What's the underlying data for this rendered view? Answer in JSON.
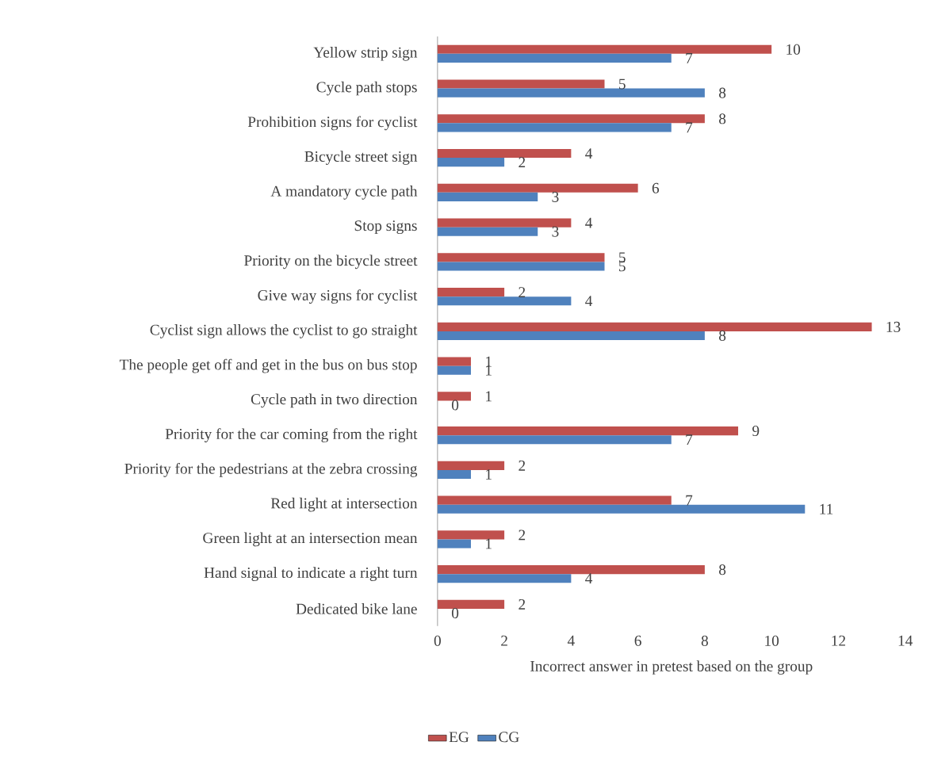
{
  "chart_data": {
    "type": "bar",
    "orientation": "horizontal",
    "xlabel": "Incorrect answer in pretest based on the group",
    "categories": [
      "Yellow strip sign",
      "Cycle path stops",
      "Prohibition signs for cyclist",
      "Bicycle street sign",
      "A mandatory cycle path",
      "Stop signs",
      "Priority on the bicycle street",
      "Give way signs for cyclist",
      "Cyclist sign allows the cyclist to go straight",
      "The people get off and get in the bus on bus stop",
      "Cycle path in two direction",
      "Priority for the car coming from the right",
      "Priority for the pedestrians at the zebra crossing",
      "Red light at intersection",
      "Green light at an intersection mean",
      "Hand signal to indicate a right turn",
      "Dedicated bike lane"
    ],
    "series": [
      {
        "name": "EG",
        "color": "#c0504d",
        "values": [
          10,
          5,
          8,
          4,
          6,
          4,
          5,
          2,
          13,
          1,
          1,
          9,
          2,
          7,
          2,
          8,
          2
        ]
      },
      {
        "name": "CG",
        "color": "#4f81bd",
        "values": [
          7,
          8,
          7,
          2,
          3,
          3,
          5,
          4,
          8,
          1,
          0,
          7,
          1,
          11,
          1,
          4,
          0
        ]
      }
    ],
    "xlim": [
      0,
      14
    ],
    "xticks": [
      0,
      2,
      4,
      6,
      8,
      10,
      12,
      14
    ],
    "data_labels": true,
    "legend": "bottom",
    "grid": false
  }
}
